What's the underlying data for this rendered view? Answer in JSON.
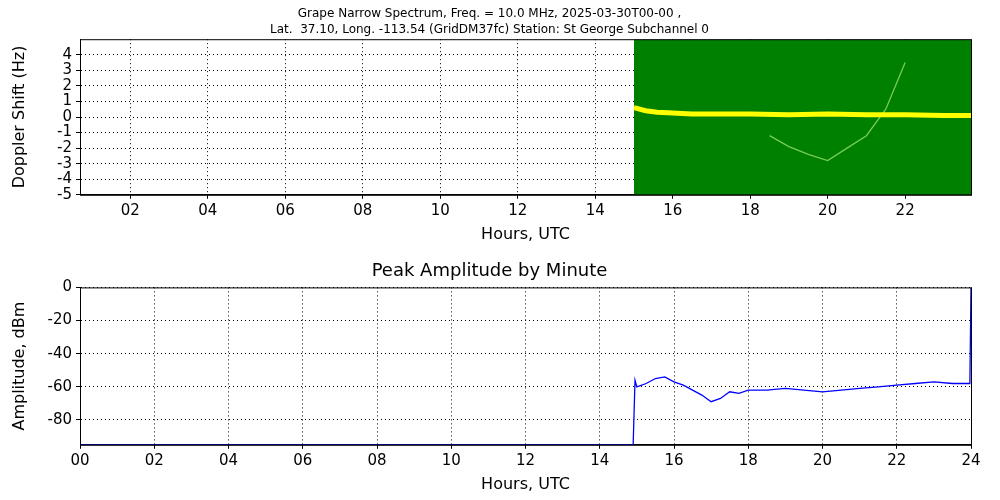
{
  "chart_data": [
    {
      "type": "line",
      "title": [
        "Grape Narrow Spectrum, Freq. = 10.0 MHz, 2025-03-30T00-00 ,",
        "Lat.  37.10, Long. -113.54 (GridDM37fc) Station: St George Subchannel 0"
      ],
      "x_label": "Hours, UTC",
      "y_label": "Doppler Shift (Hz)",
      "xlim": [
        0.7,
        23.7
      ],
      "xticks": [
        {
          "value": 2,
          "label": "02"
        },
        {
          "value": 4,
          "label": "04"
        },
        {
          "value": 6,
          "label": "06"
        },
        {
          "value": 8,
          "label": "08"
        },
        10,
        12,
        14,
        16,
        18,
        20,
        22
      ],
      "ylim": [
        -5,
        5
      ],
      "yticks": [
        -5,
        -4,
        -3,
        -2,
        -1,
        0,
        1,
        2,
        3,
        4
      ],
      "grid": true,
      "series": [
        {
          "type": "area",
          "color": "#008000",
          "x": [
            15.0,
            23.7
          ],
          "values": [
            5,
            5
          ]
        },
        {
          "type": "line",
          "color": "#ffff00",
          "x": [
            15.0,
            15.3,
            15.6,
            16.0,
            16.5,
            17.0,
            18.0,
            19.0,
            20.0,
            21.0,
            22.0,
            23.0,
            23.7
          ],
          "values": [
            0.6,
            0.4,
            0.3,
            0.25,
            0.2,
            0.2,
            0.2,
            0.15,
            0.2,
            0.15,
            0.15,
            0.1,
            0.1
          ]
        },
        {
          "type": "line",
          "color": "#77cc55",
          "x": [
            18.5,
            19.0,
            19.5,
            20.0,
            20.5,
            21.0,
            21.5,
            22.0
          ],
          "values": [
            -1.2,
            -1.9,
            -2.4,
            -2.8,
            -2.0,
            -1.2,
            0.5,
            3.5
          ]
        }
      ]
    },
    {
      "type": "line",
      "title": "Peak Amplitude by Minute",
      "x_label": "Hours, UTC",
      "y_label": "Amplitude, dBm",
      "xlim": [
        0,
        24
      ],
      "xticks": [
        {
          "value": 0,
          "label": "00"
        },
        {
          "value": 2,
          "label": "02"
        },
        {
          "value": 4,
          "label": "04"
        },
        {
          "value": 6,
          "label": "06"
        },
        {
          "value": 8,
          "label": "08"
        },
        10,
        12,
        14,
        16,
        18,
        20,
        22,
        24
      ],
      "ylim": [
        -95,
        0
      ],
      "yticks": [
        -80,
        -60,
        -40,
        -20,
        0
      ],
      "grid": true,
      "series": [
        {
          "type": "line",
          "color": "#0000ff",
          "x": [
            0,
            14.9,
            14.95,
            15.0,
            15.25,
            15.5,
            15.75,
            16.0,
            16.25,
            16.5,
            16.75,
            17.0,
            17.25,
            17.5,
            17.75,
            18.0,
            18.5,
            19.0,
            19.5,
            20.0,
            20.5,
            21.0,
            21.5,
            22.0,
            22.5,
            23.0,
            23.5,
            23.97,
            24
          ],
          "values": [
            -95,
            -95,
            -56,
            -60,
            -58,
            -55,
            -54,
            -57,
            -59,
            -62,
            -65,
            -69,
            -67,
            -63,
            -64,
            -62,
            -62,
            -61,
            -62,
            -63,
            -62,
            -61,
            -60,
            -59,
            -58,
            -57,
            -58,
            -58,
            0
          ]
        }
      ]
    }
  ]
}
